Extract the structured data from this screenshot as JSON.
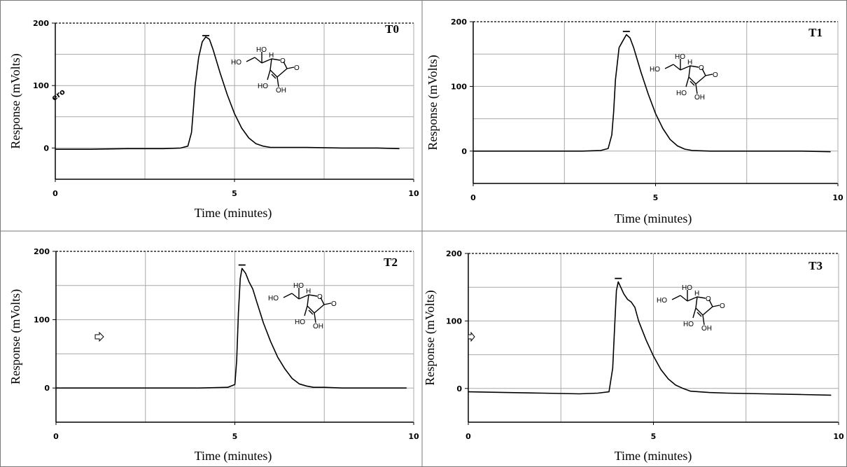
{
  "chart_data": [
    {
      "type": "line",
      "panel": "T0",
      "xlabel": "Time (minutes)",
      "ylabel": "Response (mVolts)",
      "xlim": [
        0,
        10
      ],
      "ylim": [
        -50,
        200
      ],
      "xticks": [
        0,
        5,
        10
      ],
      "yticks": [
        0,
        100,
        200
      ],
      "grid": true,
      "annotation": "ero",
      "series": [
        {
          "x": [
            0,
            1,
            2,
            3,
            3.5,
            3.7,
            3.8,
            3.85,
            3.9,
            4.0,
            4.1,
            4.2,
            4.3,
            4.4,
            4.6,
            4.8,
            5.0,
            5.2,
            5.4,
            5.6,
            5.8,
            6.0,
            6.5,
            7,
            8,
            9,
            9.6
          ],
          "y": [
            -2,
            -2,
            -1,
            -1,
            0,
            3,
            25,
            60,
            100,
            145,
            170,
            178,
            174,
            158,
            120,
            85,
            55,
            32,
            16,
            7,
            3,
            1,
            1,
            1,
            0,
            0,
            -1
          ]
        }
      ],
      "peak_max_y": 180
    },
    {
      "type": "line",
      "panel": "T1",
      "xlabel": "Time (minutes)",
      "ylabel": "Response (mVolts)",
      "xlim": [
        0,
        10
      ],
      "ylim": [
        -50,
        200
      ],
      "xticks": [
        0,
        5,
        10
      ],
      "yticks": [
        0,
        100,
        200
      ],
      "grid": true,
      "series": [
        {
          "x": [
            0,
            1,
            2,
            3,
            3.5,
            3.7,
            3.8,
            3.85,
            3.9,
            4.0,
            4.1,
            4.2,
            4.3,
            4.4,
            4.6,
            4.8,
            5.0,
            5.2,
            5.4,
            5.6,
            5.8,
            6.0,
            6.5,
            7,
            8,
            9,
            9.8
          ],
          "y": [
            0,
            0,
            0,
            0,
            1,
            4,
            25,
            60,
            110,
            160,
            170,
            180,
            175,
            160,
            122,
            88,
            58,
            35,
            18,
            8,
            3,
            1,
            0,
            0,
            0,
            0,
            -1
          ]
        }
      ],
      "peak_max_y": 185
    },
    {
      "type": "line",
      "panel": "T2",
      "xlabel": "Time (minutes)",
      "ylabel": "Response (mVolts)",
      "xlim": [
        0,
        10
      ],
      "ylim": [
        -50,
        200
      ],
      "xticks": [
        0,
        5,
        10
      ],
      "yticks": [
        0,
        100,
        200
      ],
      "grid": true,
      "series": [
        {
          "x": [
            0,
            1,
            2,
            3,
            4,
            4.8,
            5.0,
            5.05,
            5.1,
            5.15,
            5.2,
            5.3,
            5.4,
            5.5,
            5.6,
            5.8,
            6.0,
            6.2,
            6.4,
            6.6,
            6.8,
            7.0,
            7.2,
            7.5,
            8,
            9,
            9.8
          ],
          "y": [
            0,
            0,
            0,
            0,
            0,
            1,
            5,
            40,
            110,
            160,
            175,
            168,
            155,
            145,
            128,
            95,
            68,
            45,
            28,
            14,
            6,
            3,
            1,
            1,
            0,
            0,
            0
          ]
        }
      ],
      "peak_max_y": 180
    },
    {
      "type": "line",
      "panel": "T3",
      "xlabel": "Time (minutes)",
      "ylabel": "Response (mVolts)",
      "xlim": [
        0,
        10
      ],
      "ylim": [
        -50,
        200
      ],
      "xticks": [
        0,
        5,
        10
      ],
      "yticks": [
        0,
        100,
        200
      ],
      "grid": true,
      "series": [
        {
          "x": [
            0,
            1,
            2,
            3,
            3.5,
            3.8,
            3.9,
            3.95,
            4.0,
            4.05,
            4.1,
            4.2,
            4.3,
            4.4,
            4.5,
            4.6,
            4.8,
            5.0,
            5.2,
            5.4,
            5.6,
            5.8,
            6.0,
            6.5,
            7,
            8,
            9,
            9.8
          ],
          "y": [
            -5,
            -6,
            -7,
            -8,
            -7,
            -5,
            30,
            90,
            145,
            158,
            152,
            140,
            132,
            128,
            120,
            100,
            72,
            48,
            28,
            14,
            5,
            0,
            -4,
            -6,
            -7,
            -8,
            -9,
            -10
          ]
        }
      ],
      "peak_max_y": 163
    }
  ],
  "molecule": {
    "labels": [
      "HO",
      "HO",
      "H",
      "O",
      "O",
      "HO",
      "OH"
    ]
  }
}
